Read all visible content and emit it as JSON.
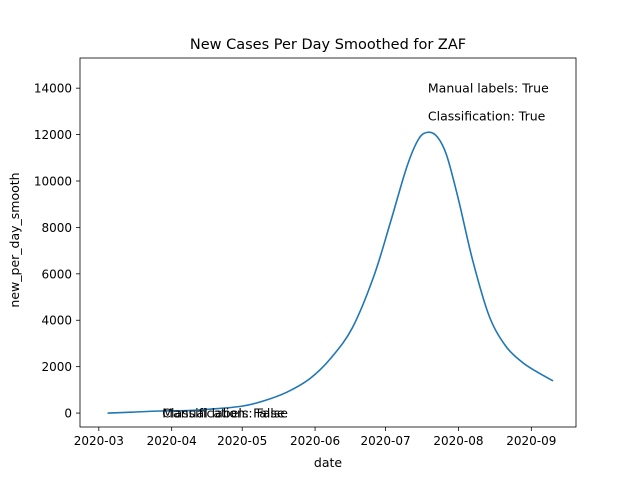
{
  "chart_data": {
    "type": "line",
    "title": "New Cases Per Day Smoothed for ZAF",
    "xlabel": "date",
    "ylabel": "new_per_day_smooth",
    "xlim": [
      "2020-02-22",
      "2020-09-20"
    ],
    "ylim": [
      -600,
      15300
    ],
    "x_ticks": [
      "2020-03",
      "2020-04",
      "2020-05",
      "2020-06",
      "2020-07",
      "2020-08",
      "2020-09"
    ],
    "y_ticks": [
      0,
      2000,
      4000,
      6000,
      8000,
      10000,
      12000,
      14000
    ],
    "grid": false,
    "legend": "none",
    "series": [
      {
        "color": "#1f77b4",
        "x": [
          "2020-03-05",
          "2020-03-15",
          "2020-03-27",
          "2020-04-08",
          "2020-04-20",
          "2020-05-01",
          "2020-05-10",
          "2020-05-20",
          "2020-05-30",
          "2020-06-08",
          "2020-06-17",
          "2020-06-26",
          "2020-07-03",
          "2020-07-10",
          "2020-07-15",
          "2020-07-19",
          "2020-07-23",
          "2020-07-27",
          "2020-08-01",
          "2020-08-07",
          "2020-08-14",
          "2020-08-21",
          "2020-08-28",
          "2020-09-03",
          "2020-09-10"
        ],
        "values": [
          0,
          40,
          90,
          110,
          190,
          300,
          520,
          900,
          1500,
          2400,
          3700,
          5900,
          8200,
          10600,
          11800,
          12100,
          11900,
          11100,
          9200,
          6600,
          4200,
          2900,
          2200,
          1800,
          1400
        ]
      }
    ],
    "annotations": [
      {
        "text": "Manual labels: True",
        "x": "2020-07-19",
        "y": 14000
      },
      {
        "text": "Classification: True",
        "x": "2020-07-19",
        "y": 12800
      },
      {
        "text": "Manual labels: False",
        "x": "2020-03-28",
        "y": 0
      },
      {
        "text": "Classification: False",
        "x": "2020-03-28",
        "y": 0
      }
    ]
  }
}
